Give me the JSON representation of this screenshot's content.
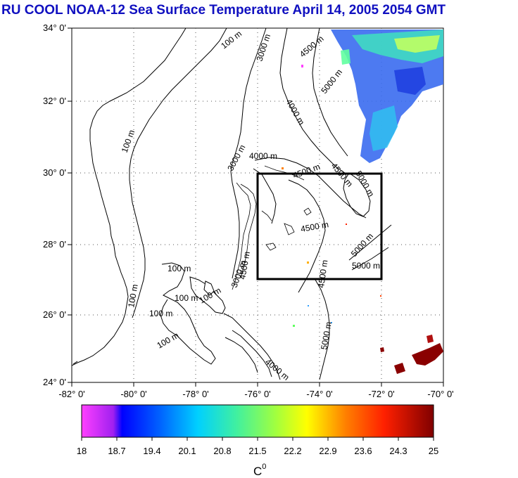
{
  "title": "RU COOL  NOAA-12 Sea Surface Temperature April 14, 2005 2054 GMT",
  "map": {
    "lat_labels": [
      "34° 0'",
      "32° 0'",
      "30° 0'",
      "28° 0'",
      "26° 0'",
      "24° 0'"
    ],
    "lon_labels": [
      "-82° 0'",
      "-80° 0'",
      "-78° 0'",
      "-76° 0'",
      "-74° 0'",
      "-72° 0'",
      "-70° 0'"
    ],
    "lat_range": [
      24,
      34
    ],
    "lon_range": [
      -82,
      -70
    ],
    "region_box": {
      "lon": [
        -76,
        -72
      ],
      "lat": [
        27,
        30
      ]
    },
    "contour_labels": [
      "100 m",
      "3000 m",
      "4500 m",
      "5000 m",
      "4000 m",
      "100 m",
      "4000 m",
      "3000 m",
      "4500 m",
      "4500 m",
      "5000 m",
      "4500 m",
      "4500 m",
      "5000 m",
      "5000 m",
      "100 m",
      "100 m",
      "100 m",
      "100 m",
      "100 m",
      "100 m",
      "4500 m",
      "5000 m",
      "4000 m",
      "3000 m"
    ]
  },
  "colorbar": {
    "tick_labels": [
      "18",
      "18.7",
      "19.4",
      "20.1",
      "20.8",
      "21.5",
      "22.2",
      "22.9",
      "23.6",
      "24.3",
      "25"
    ],
    "unit_label": "C",
    "unit_superscript": "0",
    "range": [
      18,
      25
    ]
  }
}
